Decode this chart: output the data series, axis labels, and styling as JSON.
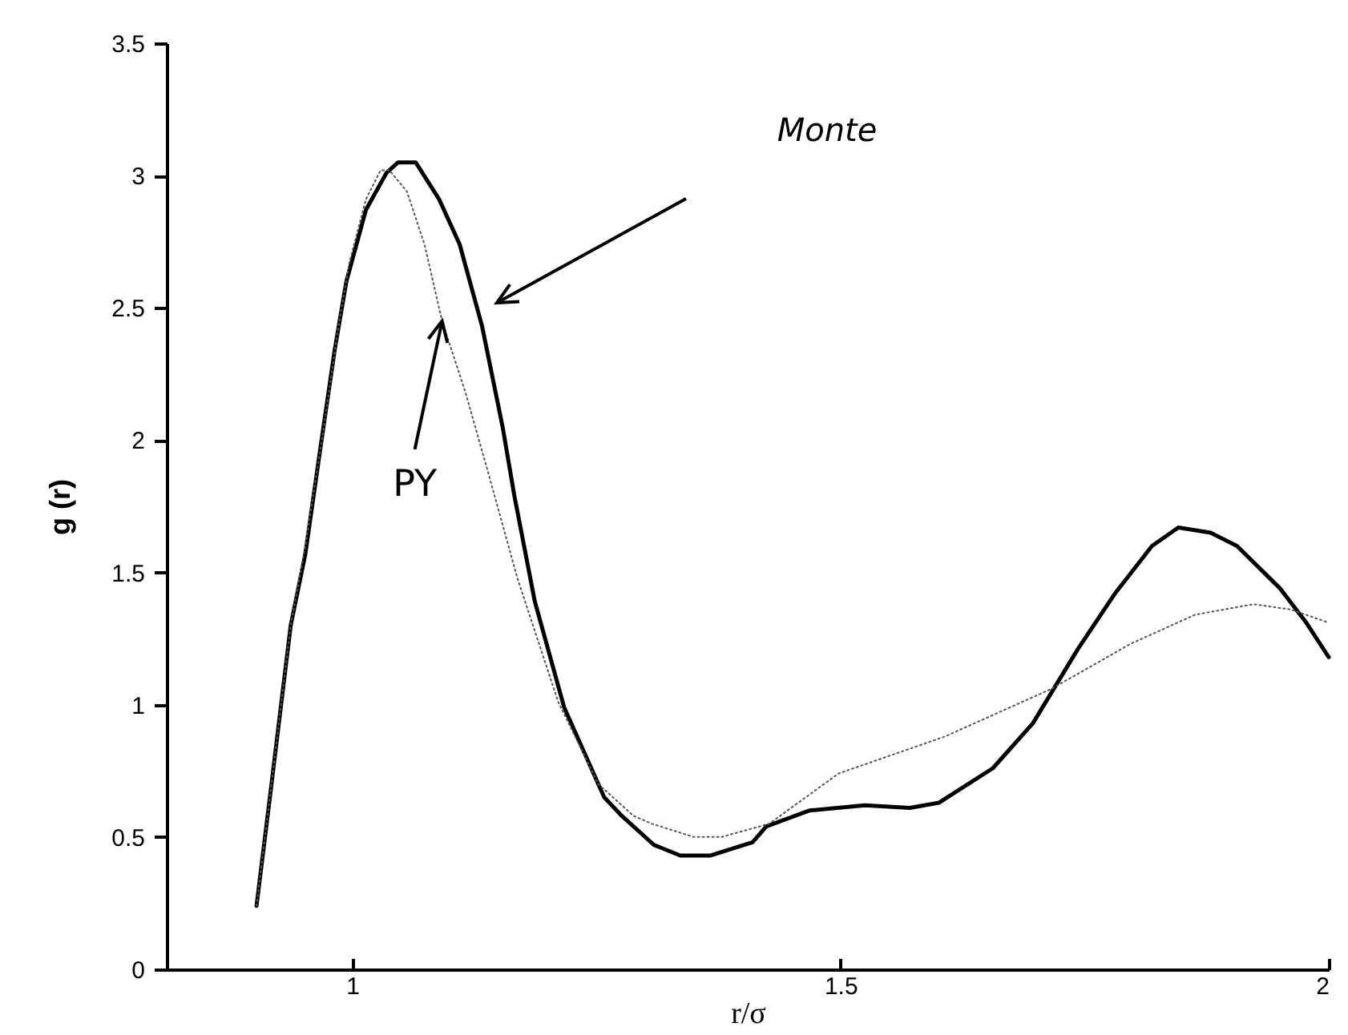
{
  "chart_data": {
    "type": "line",
    "xlabel": "r/σ",
    "ylabel": "g (r)",
    "xlim": [
      0.81,
      2
    ],
    "xticks": [
      1,
      1.5,
      2
    ],
    "ylim": [
      0,
      3.5
    ],
    "yticks": [
      0,
      0.5,
      1,
      1.5,
      2,
      2.5,
      3,
      3.5
    ],
    "series": [
      {
        "color": "#000000",
        "line_style": "solid",
        "x": [
          0.902,
          0.916,
          0.937,
          0.952,
          0.967,
          0.982,
          0.994,
          1.014,
          1.035,
          1.047,
          1.065,
          1.089,
          1.11,
          1.133,
          1.154,
          1.166,
          1.187,
          1.217,
          1.258,
          1.276,
          1.309,
          1.336,
          1.367,
          1.41,
          1.424,
          1.468,
          1.525,
          1.571,
          1.601,
          1.656,
          1.697,
          1.743,
          1.781,
          1.819,
          1.846,
          1.879,
          1.906,
          1.95,
          1.977,
          2.0
        ],
        "values": [
          0.24,
          0.66,
          1.3,
          1.57,
          1.96,
          2.34,
          2.6,
          2.87,
          3.01,
          3.05,
          3.05,
          2.91,
          2.74,
          2.43,
          2.05,
          1.79,
          1.39,
          0.99,
          0.65,
          0.58,
          0.47,
          0.43,
          0.43,
          0.48,
          0.54,
          0.6,
          0.62,
          0.61,
          0.63,
          0.76,
          0.93,
          1.21,
          1.42,
          1.6,
          1.67,
          1.65,
          1.6,
          1.44,
          1.31,
          1.18
        ]
      },
      {
        "color": "#555555",
        "line_style": "dotted",
        "x": [
          0.902,
          0.916,
          0.937,
          0.952,
          0.973,
          0.985,
          0.997,
          1.014,
          1.029,
          1.038,
          1.056,
          1.074,
          1.092,
          1.116,
          1.139,
          1.169,
          1.211,
          1.252,
          1.288,
          1.307,
          1.35,
          1.378,
          1.427,
          1.498,
          1.607,
          1.716,
          1.797,
          1.863,
          1.923,
          1.961,
          2.0
        ],
        "values": [
          0.24,
          0.66,
          1.3,
          1.6,
          2.1,
          2.41,
          2.67,
          2.91,
          3.02,
          3.02,
          2.94,
          2.74,
          2.45,
          2.18,
          1.88,
          1.48,
          1.01,
          0.7,
          0.58,
          0.55,
          0.5,
          0.5,
          0.55,
          0.74,
          0.88,
          1.06,
          1.23,
          1.34,
          1.38,
          1.36,
          1.31
        ]
      }
    ],
    "annotations": [
      "Monte",
      {
        "text": "PY",
        "x": 1.092,
        "y": 2.45
      }
    ]
  }
}
